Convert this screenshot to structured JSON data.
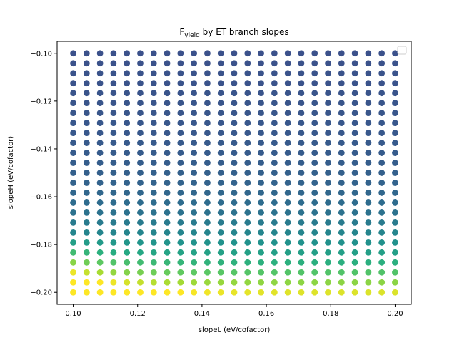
{
  "chart_data": {
    "type": "scatter",
    "title": "F",
    "title_subscript": "yield",
    "title_rest": " by ET branch slopes",
    "xlabel": "slopeL (eV/cofactor)",
    "ylabel": "slopeH (eV/cofactor)",
    "xlim": [
      0.095,
      0.205
    ],
    "ylim": [
      -0.205,
      -0.095
    ],
    "xticks": [
      0.1,
      0.12,
      0.14,
      0.16,
      0.18,
      0.2
    ],
    "xtick_labels": [
      "0.10",
      "0.12",
      "0.14",
      "0.16",
      "0.18",
      "0.20"
    ],
    "yticks": [
      -0.1,
      -0.12,
      -0.14,
      -0.16,
      -0.18,
      -0.2
    ],
    "ytick_labels": [
      "−0.10",
      "−0.12",
      "−0.14",
      "−0.16",
      "−0.18",
      "−0.20"
    ],
    "grid": false,
    "legend": "top-right, empty",
    "colormap": "viridis",
    "x_start": 0.1,
    "x_end": 0.2,
    "x_count": 25,
    "y_start": -0.1,
    "y_end": -0.2,
    "y_count": 25,
    "color_note": "color value increases toward low slopeH; bottom-left corner is highest (yellow)"
  }
}
